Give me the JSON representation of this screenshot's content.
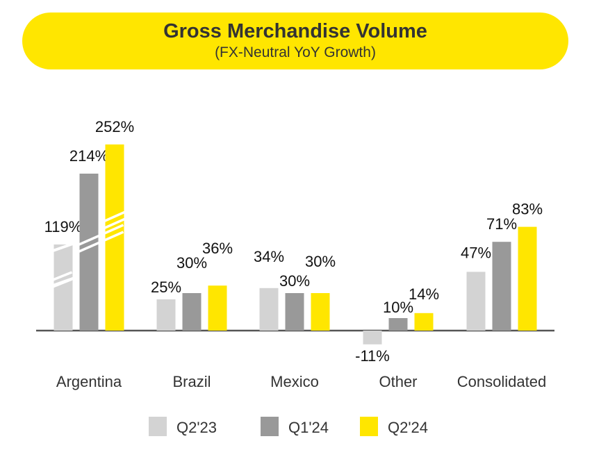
{
  "header": {
    "title": "Gross Merchandise Volume",
    "subtitle": "(FX-Neutral YoY Growth)"
  },
  "colors": {
    "accent": "#FFE600",
    "Q2'23": "#D3D3D3",
    "Q1'24": "#999999",
    "Q2'24": "#FFE600",
    "axis": "#555555"
  },
  "chart_data": {
    "type": "bar",
    "title": "Gross Merchandise Volume",
    "subtitle": "(FX-Neutral YoY Growth)",
    "categories": [
      "Argentina",
      "Brazil",
      "Mexico",
      "Other",
      "Consolidated"
    ],
    "series": [
      {
        "name": "Q2'23",
        "values": [
          119,
          25,
          34,
          -11,
          47
        ],
        "labels": [
          "119%",
          "25%",
          "34%",
          "-11%",
          "47%"
        ]
      },
      {
        "name": "Q1'24",
        "values": [
          214,
          30,
          30,
          10,
          71
        ],
        "labels": [
          "214%",
          "30%",
          "30%",
          "10%",
          "71%"
        ]
      },
      {
        "name": "Q2'24",
        "values": [
          252,
          36,
          30,
          14,
          83
        ],
        "labels": [
          "252%",
          "36%",
          "30%",
          "14%",
          "83%"
        ]
      }
    ],
    "axis_break": {
      "category": "Argentina",
      "note": "bars truncated with break marks"
    },
    "legend": {
      "position": "bottom",
      "entries": [
        "Q2'23",
        "Q1'24",
        "Q2'24"
      ]
    },
    "grid": false
  }
}
